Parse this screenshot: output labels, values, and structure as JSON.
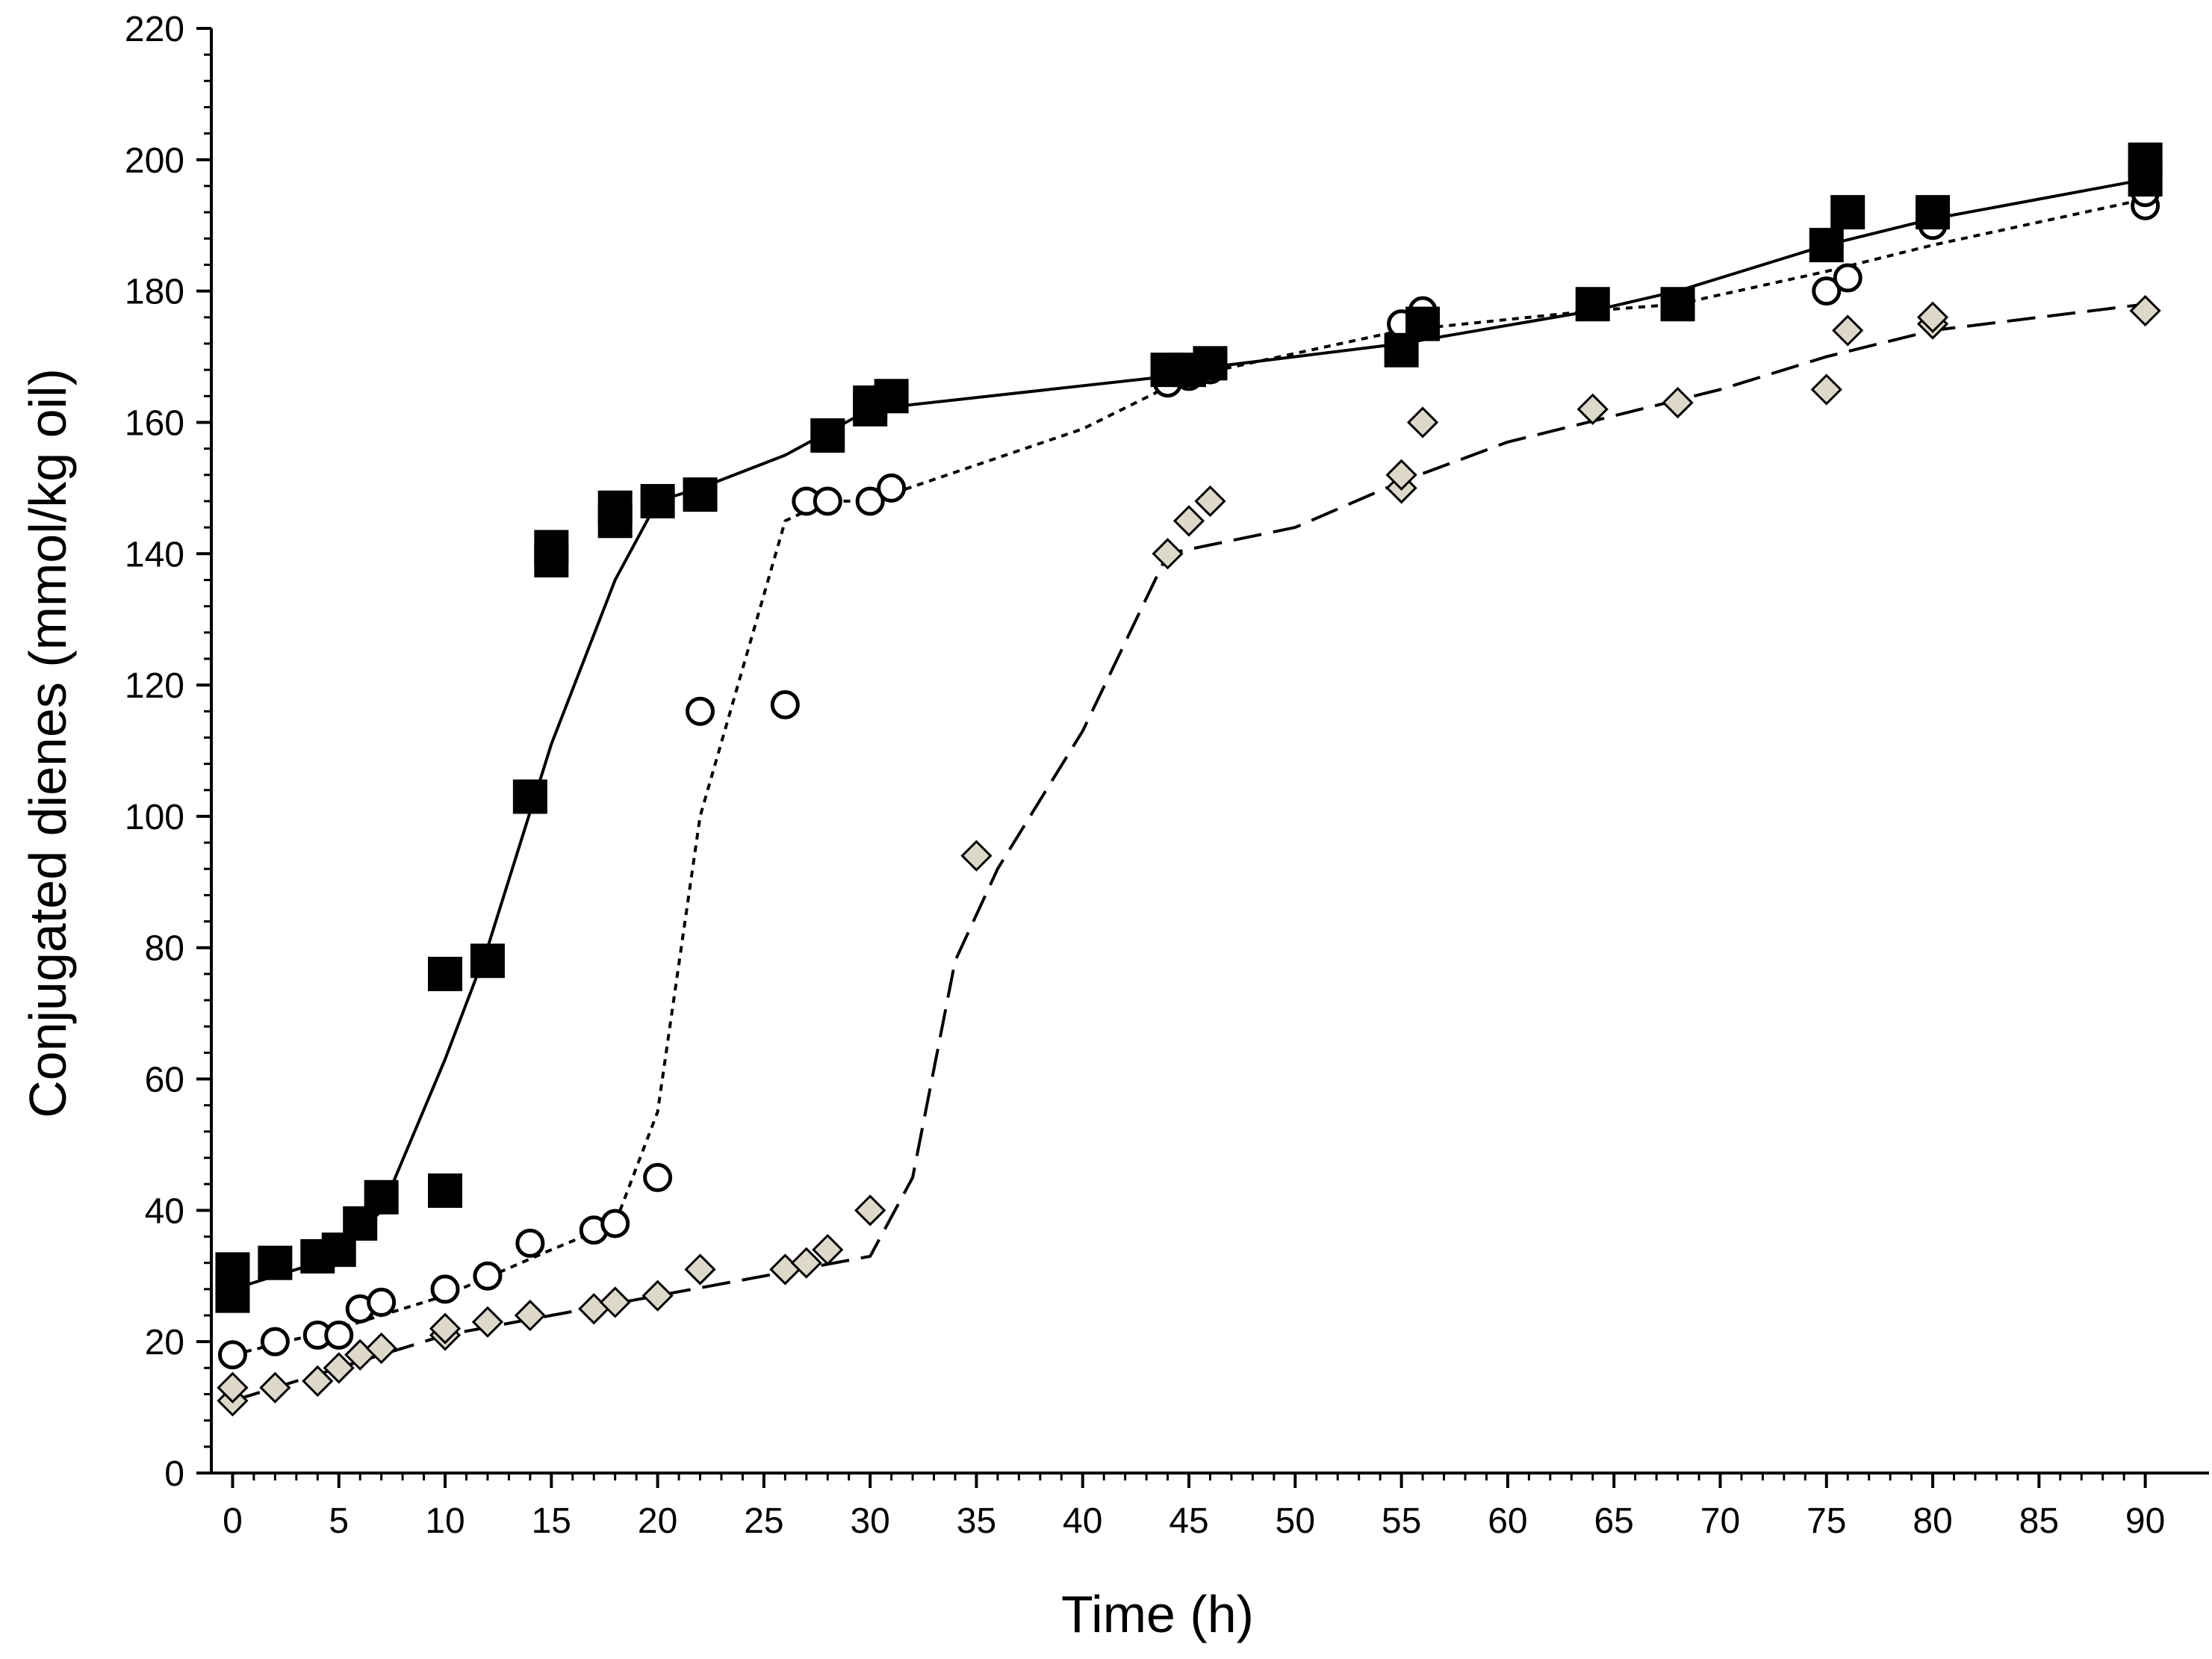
{
  "chart_data": {
    "type": "scatter",
    "title": "",
    "xlabel": "Time (h)",
    "ylabel": "Conjugated dienes (mmol/kg oil)",
    "xlim": [
      -1,
      93
    ],
    "ylim": [
      0,
      220
    ],
    "xticks": [
      0,
      5,
      10,
      15,
      20,
      25,
      30,
      35,
      40,
      45,
      50,
      55,
      60,
      65,
      70,
      75,
      80,
      85,
      90
    ],
    "yticks": [
      0,
      20,
      40,
      60,
      80,
      100,
      120,
      140,
      160,
      180,
      200,
      220
    ],
    "grid": false,
    "legend": "none",
    "series": [
      {
        "name": "filled squares",
        "marker": "square",
        "fill": "#000000",
        "line": "solid",
        "points": [
          [
            0,
            27
          ],
          [
            0,
            31
          ],
          [
            2,
            32
          ],
          [
            4,
            33
          ],
          [
            5,
            34
          ],
          [
            6,
            38
          ],
          [
            7,
            42
          ],
          [
            10,
            43
          ],
          [
            10,
            76
          ],
          [
            12,
            78
          ],
          [
            14,
            103
          ],
          [
            15,
            139
          ],
          [
            15,
            141
          ],
          [
            18,
            145
          ],
          [
            18,
            147
          ],
          [
            20,
            148
          ],
          [
            22,
            149
          ],
          [
            28,
            158
          ],
          [
            30,
            162
          ],
          [
            30,
            163
          ],
          [
            31,
            164
          ],
          [
            44,
            168
          ],
          [
            45,
            168
          ],
          [
            46,
            169
          ],
          [
            55,
            171
          ],
          [
            56,
            175
          ],
          [
            64,
            178
          ],
          [
            68,
            178
          ],
          [
            75,
            187
          ],
          [
            76,
            192
          ],
          [
            80,
            192
          ],
          [
            90,
            197
          ],
          [
            90,
            200
          ]
        ],
        "fit": [
          [
            0,
            28
          ],
          [
            5,
            33
          ],
          [
            7,
            40
          ],
          [
            10,
            63
          ],
          [
            12,
            80
          ],
          [
            15,
            111
          ],
          [
            18,
            136
          ],
          [
            20,
            148
          ],
          [
            22,
            150
          ],
          [
            26,
            155
          ],
          [
            30,
            162
          ],
          [
            44,
            167
          ],
          [
            45,
            168
          ],
          [
            55,
            172
          ],
          [
            64,
            177
          ],
          [
            68,
            180
          ],
          [
            75,
            187
          ],
          [
            80,
            191
          ],
          [
            90,
            197
          ]
        ]
      },
      {
        "name": "open circles",
        "marker": "circle",
        "fill": "#ffffff",
        "line": "short-dash",
        "points": [
          [
            0,
            18
          ],
          [
            2,
            20
          ],
          [
            4,
            21
          ],
          [
            5,
            21
          ],
          [
            6,
            25
          ],
          [
            7,
            26
          ],
          [
            10,
            28
          ],
          [
            12,
            30
          ],
          [
            14,
            35
          ],
          [
            17,
            37
          ],
          [
            18,
            38
          ],
          [
            20,
            45
          ],
          [
            22,
            116
          ],
          [
            26,
            117
          ],
          [
            27,
            148
          ],
          [
            28,
            148
          ],
          [
            30,
            148
          ],
          [
            31,
            150
          ],
          [
            44,
            166
          ],
          [
            45,
            167
          ],
          [
            46,
            168
          ],
          [
            55,
            175
          ],
          [
            56,
            177
          ],
          [
            64,
            178
          ],
          [
            68,
            178
          ],
          [
            75,
            180
          ],
          [
            76,
            182
          ],
          [
            80,
            190
          ],
          [
            90,
            193
          ],
          [
            90,
            195
          ]
        ],
        "fit": [
          [
            0,
            18
          ],
          [
            5,
            22
          ],
          [
            10,
            27
          ],
          [
            15,
            34
          ],
          [
            18,
            38
          ],
          [
            20,
            55
          ],
          [
            22,
            100
          ],
          [
            26,
            145
          ],
          [
            28,
            148
          ],
          [
            30,
            148
          ],
          [
            40,
            159
          ],
          [
            45,
            167
          ],
          [
            55,
            174
          ],
          [
            64,
            177
          ],
          [
            68,
            178
          ],
          [
            75,
            183
          ],
          [
            80,
            187
          ],
          [
            90,
            194
          ]
        ]
      },
      {
        "name": "grey diamonds",
        "marker": "diamond",
        "fill": "#ddd8c9",
        "line": "long-dash",
        "points": [
          [
            0,
            11
          ],
          [
            0,
            13
          ],
          [
            2,
            13
          ],
          [
            4,
            14
          ],
          [
            5,
            16
          ],
          [
            6,
            18
          ],
          [
            7,
            19
          ],
          [
            10,
            21
          ],
          [
            10,
            22
          ],
          [
            12,
            23
          ],
          [
            14,
            24
          ],
          [
            17,
            25
          ],
          [
            18,
            26
          ],
          [
            20,
            27
          ],
          [
            22,
            31
          ],
          [
            26,
            31
          ],
          [
            27,
            32
          ],
          [
            28,
            34
          ],
          [
            30,
            40
          ],
          [
            35,
            94
          ],
          [
            44,
            140
          ],
          [
            45,
            145
          ],
          [
            46,
            148
          ],
          [
            55,
            150
          ],
          [
            55,
            152
          ],
          [
            56,
            160
          ],
          [
            64,
            162
          ],
          [
            68,
            163
          ],
          [
            75,
            165
          ],
          [
            76,
            174
          ],
          [
            80,
            175
          ],
          [
            80,
            176
          ],
          [
            90,
            177
          ]
        ],
        "fit": [
          [
            0,
            11
          ],
          [
            5,
            16
          ],
          [
            10,
            21
          ],
          [
            15,
            24
          ],
          [
            20,
            27
          ],
          [
            25,
            30
          ],
          [
            30,
            33
          ],
          [
            32,
            45
          ],
          [
            34,
            78
          ],
          [
            36,
            92
          ],
          [
            40,
            113
          ],
          [
            44,
            140
          ],
          [
            50,
            144
          ],
          [
            55,
            151
          ],
          [
            60,
            157
          ],
          [
            65,
            161
          ],
          [
            70,
            165
          ],
          [
            75,
            170
          ],
          [
            80,
            174
          ],
          [
            85,
            176
          ],
          [
            90,
            178
          ]
        ]
      }
    ]
  }
}
